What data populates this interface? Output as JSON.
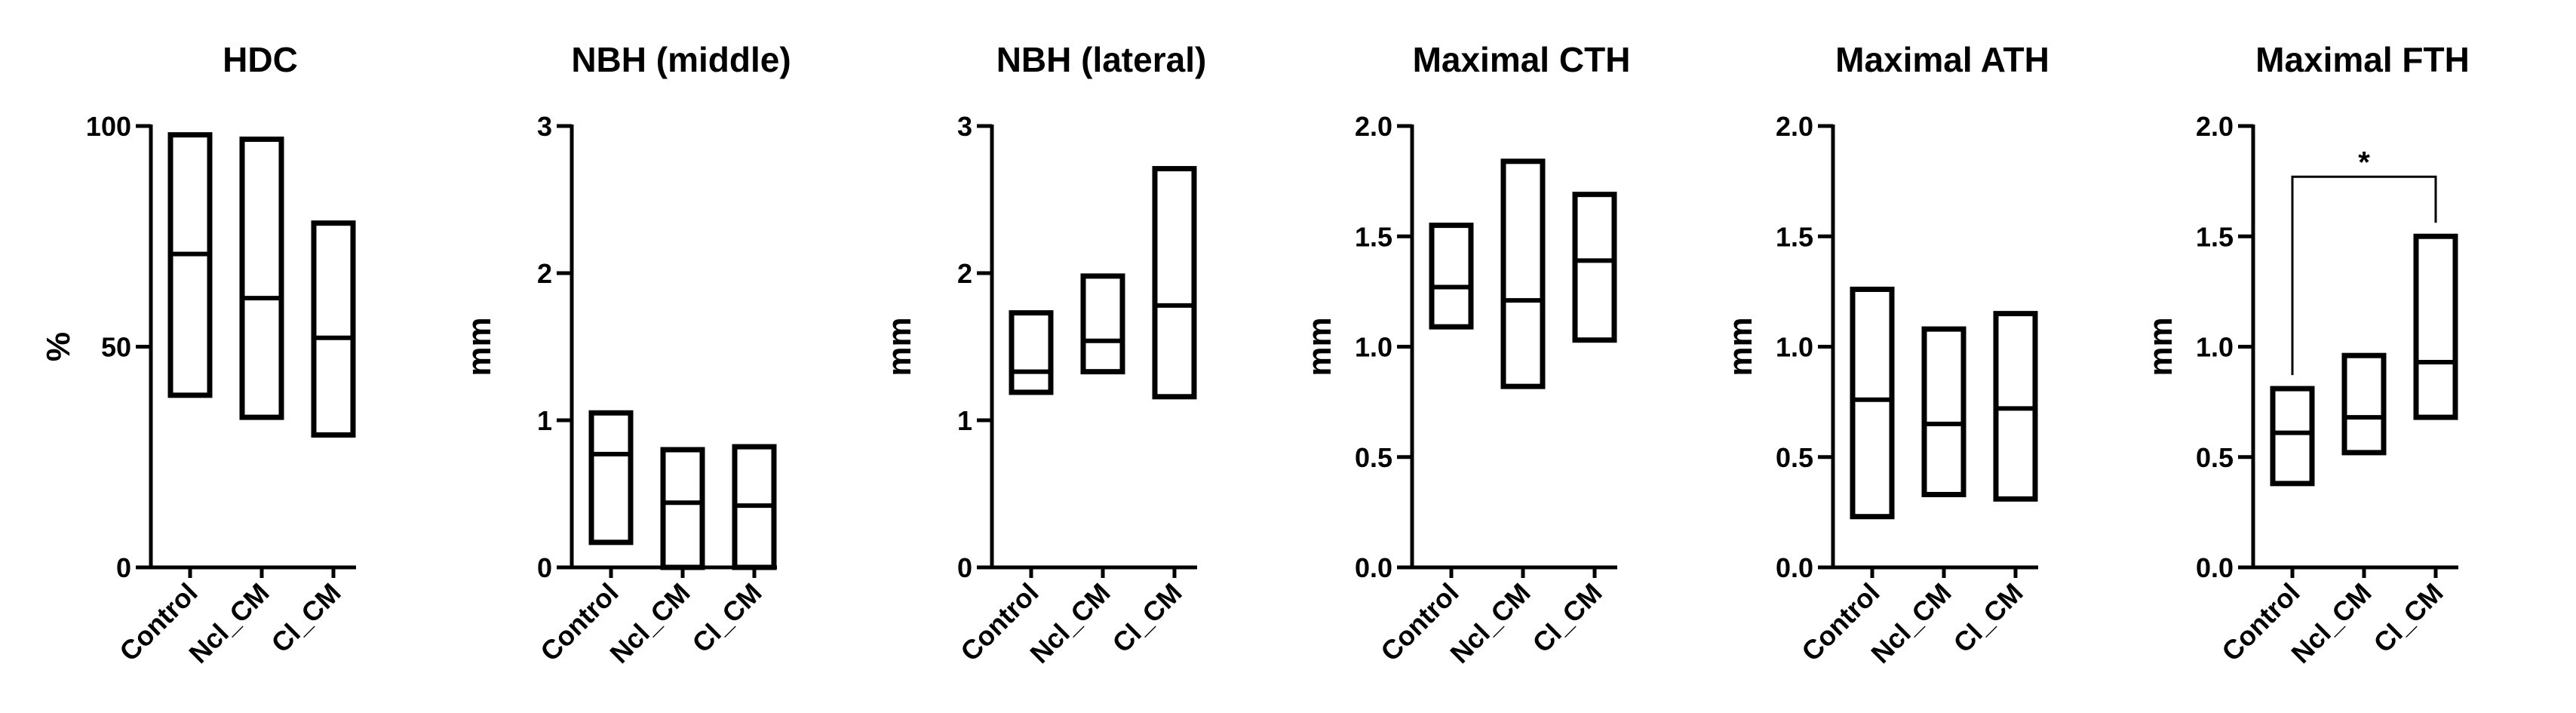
{
  "figure": {
    "description_free": true
  },
  "chart_data": [
    {
      "type": "floating-bar",
      "title": "HDC",
      "ylabel": "%",
      "categories": [
        "Control",
        "Ncl_CM",
        "Cl_CM"
      ],
      "ylim": [
        0,
        100
      ],
      "yticks": [
        0,
        50,
        100
      ],
      "ytick_labels": [
        "0",
        "50",
        "100"
      ],
      "series": [
        {
          "category": "Control",
          "min": 39,
          "median": 71,
          "max": 98
        },
        {
          "category": "Ncl_CM",
          "min": 34,
          "median": 61,
          "max": 97
        },
        {
          "category": "Cl_CM",
          "min": 30,
          "median": 52,
          "max": 78
        }
      ],
      "significance": []
    },
    {
      "type": "floating-bar",
      "title": "NBH (middle)",
      "ylabel": "mm",
      "categories": [
        "Control",
        "Ncl_CM",
        "Cl_CM"
      ],
      "ylim": [
        0,
        3
      ],
      "yticks": [
        0,
        1,
        2,
        3
      ],
      "ytick_labels": [
        "0",
        "1",
        "2",
        "3"
      ],
      "series": [
        {
          "category": "Control",
          "min": 0.17,
          "median": 0.77,
          "max": 1.05
        },
        {
          "category": "Ncl_CM",
          "min": 0,
          "median": 0.44,
          "max": 0.8
        },
        {
          "category": "Cl_CM",
          "min": 0,
          "median": 0.42,
          "max": 0.82
        }
      ],
      "significance": []
    },
    {
      "type": "floating-bar",
      "title": "NBH (lateral)",
      "ylabel": "mm",
      "categories": [
        "Control",
        "Ncl_CM",
        "Cl_CM"
      ],
      "ylim": [
        0,
        3
      ],
      "yticks": [
        0,
        1,
        2,
        3
      ],
      "ytick_labels": [
        "0",
        "1",
        "2",
        "3"
      ],
      "series": [
        {
          "category": "Control",
          "min": 1.19,
          "median": 1.33,
          "max": 1.73
        },
        {
          "category": "Ncl_CM",
          "min": 1.33,
          "median": 1.54,
          "max": 1.98
        },
        {
          "category": "Cl_CM",
          "min": 1.16,
          "median": 1.78,
          "max": 2.71
        }
      ],
      "significance": []
    },
    {
      "type": "floating-bar",
      "title": "Maximal CTH",
      "ylabel": "mm",
      "categories": [
        "Control",
        "Ncl_CM",
        "Cl_CM"
      ],
      "ylim": [
        0,
        2
      ],
      "yticks": [
        0,
        0.5,
        1,
        1.5,
        2
      ],
      "ytick_labels": [
        "0.0",
        "0.5",
        "1.0",
        "1.5",
        "2.0"
      ],
      "series": [
        {
          "category": "Control",
          "min": 1.09,
          "median": 1.27,
          "max": 1.55
        },
        {
          "category": "Ncl_CM",
          "min": 0.82,
          "median": 1.21,
          "max": 1.84
        },
        {
          "category": "Cl_CM",
          "min": 1.03,
          "median": 1.39,
          "max": 1.69
        }
      ],
      "significance": []
    },
    {
      "type": "floating-bar",
      "title": "Maximal ATH",
      "ylabel": "mm",
      "categories": [
        "Control",
        "Ncl_CM",
        "Cl_CM"
      ],
      "ylim": [
        0,
        2
      ],
      "yticks": [
        0,
        0.5,
        1,
        1.5,
        2
      ],
      "ytick_labels": [
        "0.0",
        "0.5",
        "1.0",
        "1.5",
        "2.0"
      ],
      "series": [
        {
          "category": "Control",
          "min": 0.23,
          "median": 0.76,
          "max": 1.26
        },
        {
          "category": "Ncl_CM",
          "min": 0.33,
          "median": 0.65,
          "max": 1.08
        },
        {
          "category": "Cl_CM",
          "min": 0.31,
          "median": 0.72,
          "max": 1.15
        }
      ],
      "significance": []
    },
    {
      "type": "floating-bar",
      "title": "Maximal FTH",
      "ylabel": "mm",
      "categories": [
        "Control",
        "Ncl_CM",
        "Cl_CM"
      ],
      "ylim": [
        0,
        2
      ],
      "yticks": [
        0,
        0.5,
        1,
        1.5,
        2
      ],
      "ytick_labels": [
        "0.0",
        "0.5",
        "1.0",
        "1.5",
        "2.0"
      ],
      "series": [
        {
          "category": "Control",
          "min": 0.38,
          "median": 0.61,
          "max": 0.81
        },
        {
          "category": "Ncl_CM",
          "min": 0.52,
          "median": 0.68,
          "max": 0.96
        },
        {
          "category": "Cl_CM",
          "min": 0.68,
          "median": 0.93,
          "max": 1.5
        }
      ],
      "significance": [
        {
          "from": "Control",
          "to": "Cl_CM",
          "label": "*"
        }
      ]
    }
  ],
  "style": {
    "stroke_color": "#000000",
    "background_color": "#ffffff"
  }
}
